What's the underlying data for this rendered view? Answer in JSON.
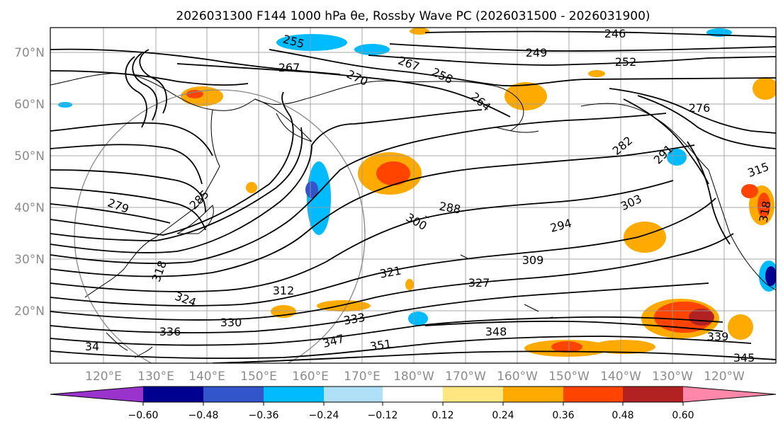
{
  "title": "2026031300 F144 1000 hPa θe, Rossby Wave PC (2026031500 - 2026031900)",
  "lat_labels": [
    "70°N",
    "60°N",
    "50°N",
    "40°N",
    "30°N",
    "20°N"
  ],
  "lon_labels": [
    "120°E",
    "130°E",
    "140°E",
    "150°E",
    "160°E",
    "170°E",
    "180°W",
    "170°W",
    "160°W",
    "150°W",
    "140°W",
    "130°W",
    "120°W"
  ],
  "colorbar": {
    "colors": [
      "#9933cc",
      "#000090",
      "#3355cc",
      "#00bbff",
      "#b0e0f8",
      "#ffffff",
      "#ffe680",
      "#ffaa00",
      "#ff4400",
      "#b22222",
      "#ff88aa"
    ],
    "tick_labels": [
      "−0.60",
      "−0.48",
      "−0.36",
      "−0.24",
      "−0.12",
      "0.12",
      "0.24",
      "0.36",
      "0.48",
      "0.60"
    ]
  },
  "contour_labels": [
    "246",
    "249",
    "252",
    "255",
    "267",
    "270",
    "267",
    "258",
    "264",
    "276",
    "279",
    "285",
    "282",
    "291",
    "288",
    "300",
    "303",
    "294",
    "309",
    "315",
    "318",
    "318",
    "321",
    "312",
    "327",
    "324",
    "330",
    "333",
    "336",
    "348",
    "347",
    "351",
    "339",
    "345",
    "34"
  ]
}
